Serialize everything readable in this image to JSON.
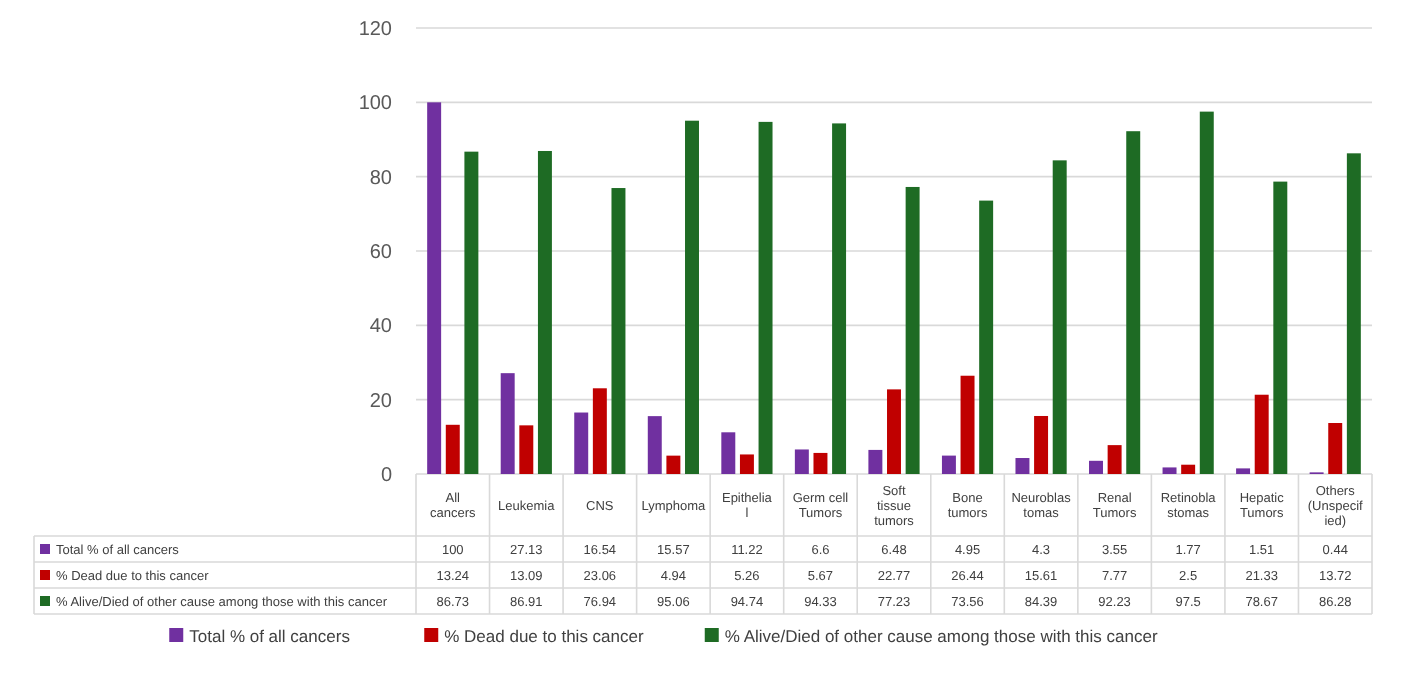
{
  "chart_data": {
    "type": "bar",
    "categories": [
      "All cancers",
      "Leukemia",
      "CNS",
      "Lymphoma",
      "Epithelial",
      "Germ cell Tumors",
      "Soft tissue tumors",
      "Bone tumors",
      "Neuroblastomas",
      "Renal Tumors",
      "Retinoblastomas",
      "Hepatic Tumors",
      "Others (Unspecified)"
    ],
    "series": [
      {
        "name": "Total % of all cancers",
        "color": "#7030a0",
        "values": [
          100,
          27.13,
          16.54,
          15.57,
          11.22,
          6.6,
          6.48,
          4.95,
          4.3,
          3.55,
          1.77,
          1.51,
          0.44
        ]
      },
      {
        "name": "% Dead due to this cancer",
        "color": "#c00000",
        "values": [
          13.24,
          13.09,
          23.06,
          4.94,
          5.26,
          5.67,
          22.77,
          26.44,
          15.61,
          7.77,
          2.5,
          21.33,
          13.72
        ]
      },
      {
        "name": "% Alive/Died of other cause among those with this cancer",
        "color": "#1e6b24",
        "values": [
          86.73,
          86.91,
          76.94,
          95.06,
          94.74,
          94.33,
          77.23,
          73.56,
          84.39,
          92.23,
          97.5,
          78.67,
          86.28
        ]
      }
    ],
    "ylim": [
      0,
      120
    ],
    "yticks": [
      0,
      20,
      40,
      60,
      80,
      100,
      120
    ],
    "grid": "y",
    "legend": "bottom",
    "data_labels": true
  }
}
